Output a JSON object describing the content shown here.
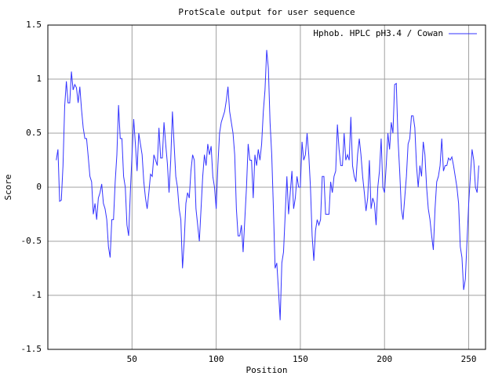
{
  "chart_data": {
    "type": "line",
    "title": "ProtScale output for user sequence",
    "x_label": "Position",
    "y_label": "Score",
    "xlim": [
      0,
      260
    ],
    "xticks": [
      50,
      100,
      150,
      200,
      250
    ],
    "ylim": [
      -1.5,
      1.5
    ],
    "yticks": [
      -1.5,
      -1,
      -0.5,
      0,
      0.5,
      1,
      1.5
    ],
    "grid": true,
    "legend": "top-right",
    "x": [
      5,
      6,
      7,
      8,
      9,
      10,
      11,
      12,
      13,
      14,
      15,
      16,
      17,
      18,
      19,
      20,
      21,
      22,
      23,
      24,
      25,
      26,
      27,
      28,
      29,
      30,
      31,
      32,
      33,
      34,
      35,
      36,
      37,
      38,
      39,
      40,
      41,
      42,
      43,
      44,
      45,
      46,
      47,
      48,
      49,
      50,
      51,
      52,
      53,
      54,
      55,
      56,
      57,
      58,
      59,
      60,
      61,
      62,
      63,
      64,
      65,
      66,
      67,
      68,
      69,
      70,
      71,
      72,
      73,
      74,
      75,
      76,
      77,
      78,
      79,
      80,
      81,
      82,
      83,
      84,
      85,
      86,
      87,
      88,
      89,
      90,
      91,
      92,
      93,
      94,
      95,
      96,
      97,
      98,
      99,
      100,
      101,
      102,
      103,
      104,
      105,
      106,
      107,
      108,
      109,
      110,
      111,
      112,
      113,
      114,
      115,
      116,
      117,
      118,
      119,
      120,
      121,
      122,
      123,
      124,
      125,
      126,
      127,
      128,
      129,
      130,
      131,
      132,
      133,
      134,
      135,
      136,
      137,
      138,
      139,
      140,
      141,
      142,
      143,
      144,
      145,
      146,
      147,
      148,
      149,
      150,
      151,
      152,
      153,
      154,
      155,
      156,
      157,
      158,
      159,
      160,
      161,
      162,
      163,
      164,
      165,
      166,
      167,
      168,
      169,
      170,
      171,
      172,
      173,
      174,
      175,
      176,
      177,
      178,
      179,
      180,
      181,
      182,
      183,
      184,
      185,
      186,
      187,
      188,
      189,
      190,
      191,
      192,
      193,
      194,
      195,
      196,
      197,
      198,
      199,
      200,
      201,
      202,
      203,
      204,
      205,
      206,
      207,
      208,
      209,
      210,
      211,
      212,
      213,
      214,
      215,
      216,
      217,
      218,
      219,
      220,
      221,
      222,
      223,
      224,
      225,
      226,
      227,
      228,
      229,
      230,
      231,
      232,
      233,
      234,
      235,
      236,
      237,
      238,
      239,
      240,
      241,
      242,
      243,
      244,
      245,
      246,
      247,
      248,
      249,
      250,
      251,
      252,
      253,
      254,
      255,
      256
    ],
    "series": [
      {
        "name": "Hphob. HPLC pH3.4 / Cowan",
        "color": "#3333ff",
        "values": [
          0.25,
          0.35,
          -0.13,
          -0.12,
          0.2,
          0.75,
          0.98,
          0.78,
          0.78,
          1.07,
          0.9,
          0.95,
          0.92,
          0.78,
          0.93,
          0.72,
          0.55,
          0.45,
          0.45,
          0.28,
          0.1,
          0.05,
          -0.25,
          -0.15,
          -0.3,
          -0.1,
          -0.05,
          0.03,
          -0.15,
          -0.2,
          -0.3,
          -0.55,
          -0.65,
          -0.3,
          -0.3,
          0.05,
          0.3,
          0.76,
          0.45,
          0.45,
          0.1,
          0.0,
          -0.35,
          -0.45,
          -0.05,
          0.3,
          0.63,
          0.4,
          0.15,
          0.5,
          0.4,
          0.3,
          0.05,
          -0.1,
          -0.2,
          -0.05,
          0.12,
          0.1,
          0.3,
          0.25,
          0.2,
          0.55,
          0.27,
          0.27,
          0.6,
          0.4,
          0.22,
          -0.05,
          0.25,
          0.7,
          0.4,
          0.1,
          0.0,
          -0.2,
          -0.3,
          -0.75,
          -0.5,
          -0.15,
          -0.05,
          -0.1,
          0.15,
          0.3,
          0.25,
          -0.2,
          -0.35,
          -0.5,
          -0.2,
          0.1,
          0.3,
          0.2,
          0.4,
          0.3,
          0.38,
          0.1,
          0.0,
          -0.2,
          0.2,
          0.5,
          0.6,
          0.65,
          0.7,
          0.8,
          0.93,
          0.7,
          0.6,
          0.5,
          0.3,
          -0.2,
          -0.45,
          -0.45,
          -0.35,
          -0.6,
          -0.3,
          0.0,
          0.4,
          0.25,
          0.25,
          -0.1,
          0.3,
          0.2,
          0.35,
          0.25,
          0.4,
          0.7,
          0.9,
          1.27,
          1.1,
          0.6,
          0.3,
          -0.2,
          -0.75,
          -0.7,
          -0.95,
          -1.23,
          -0.7,
          -0.6,
          -0.25,
          0.1,
          -0.25,
          -0.05,
          0.15,
          -0.2,
          -0.1,
          0.1,
          0.0,
          0.0,
          0.42,
          0.25,
          0.3,
          0.5,
          0.3,
          0.0,
          -0.45,
          -0.68,
          -0.4,
          -0.3,
          -0.35,
          -0.3,
          0.1,
          0.1,
          -0.25,
          -0.25,
          -0.25,
          0.05,
          -0.05,
          0.1,
          0.15,
          0.58,
          0.35,
          0.2,
          0.2,
          0.5,
          0.25,
          0.3,
          0.25,
          0.65,
          0.2,
          0.1,
          0.05,
          0.3,
          0.45,
          0.3,
          0.1,
          -0.05,
          -0.22,
          -0.1,
          0.25,
          -0.2,
          -0.1,
          -0.15,
          -0.35,
          0.0,
          0.15,
          0.45,
          0.0,
          -0.05,
          0.2,
          0.5,
          0.35,
          0.6,
          0.5,
          0.95,
          0.96,
          0.45,
          0.15,
          -0.2,
          -0.3,
          -0.1,
          0.1,
          0.4,
          0.45,
          0.66,
          0.66,
          0.55,
          0.2,
          0.0,
          0.2,
          0.1,
          0.42,
          0.3,
          0.0,
          -0.2,
          -0.3,
          -0.45,
          -0.58,
          -0.2,
          0.05,
          0.1,
          0.2,
          0.45,
          0.15,
          0.2,
          0.2,
          0.27,
          0.25,
          0.28,
          0.2,
          0.1,
          0.0,
          -0.15,
          -0.55,
          -0.65,
          -0.95,
          -0.85,
          -0.5,
          -0.15,
          0.1,
          0.35,
          0.25,
          0.0,
          -0.05,
          0.2
        ]
      }
    ]
  }
}
